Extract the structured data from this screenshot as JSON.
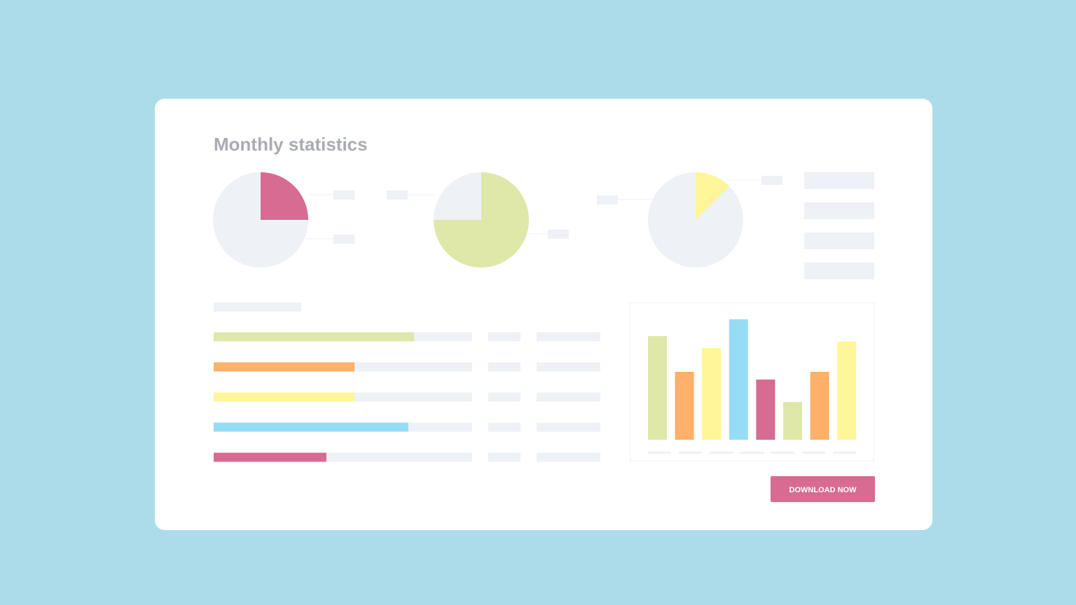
{
  "header": {
    "title": "Monthly statistics"
  },
  "pies": [
    {
      "value": 25,
      "color": "#d76b91"
    },
    {
      "value": 75,
      "color": "#dfe8a9"
    },
    {
      "value": 12.5,
      "color": "#fff599"
    }
  ],
  "progress": [
    {
      "value": 77.5,
      "color": "#dfe8a9"
    },
    {
      "value": 54.5,
      "color": "#ffb06a"
    },
    {
      "value": 54.5,
      "color": "#fff599"
    },
    {
      "value": 75.3,
      "color": "#97dcf7"
    },
    {
      "value": 43.6,
      "color": "#d76b91"
    }
  ],
  "chart_data": {
    "type": "bar",
    "values": [
      148,
      97,
      131,
      172,
      86,
      54,
      97,
      140
    ],
    "colors": [
      "#dfe8a9",
      "#ffb06a",
      "#fff599",
      "#97dcf7",
      "#d76b91",
      "#dfe8a9",
      "#ffb06a",
      "#fff599"
    ],
    "ylim": [
      0,
      180
    ]
  },
  "button": {
    "label": "DOWNLOAD NOW"
  }
}
